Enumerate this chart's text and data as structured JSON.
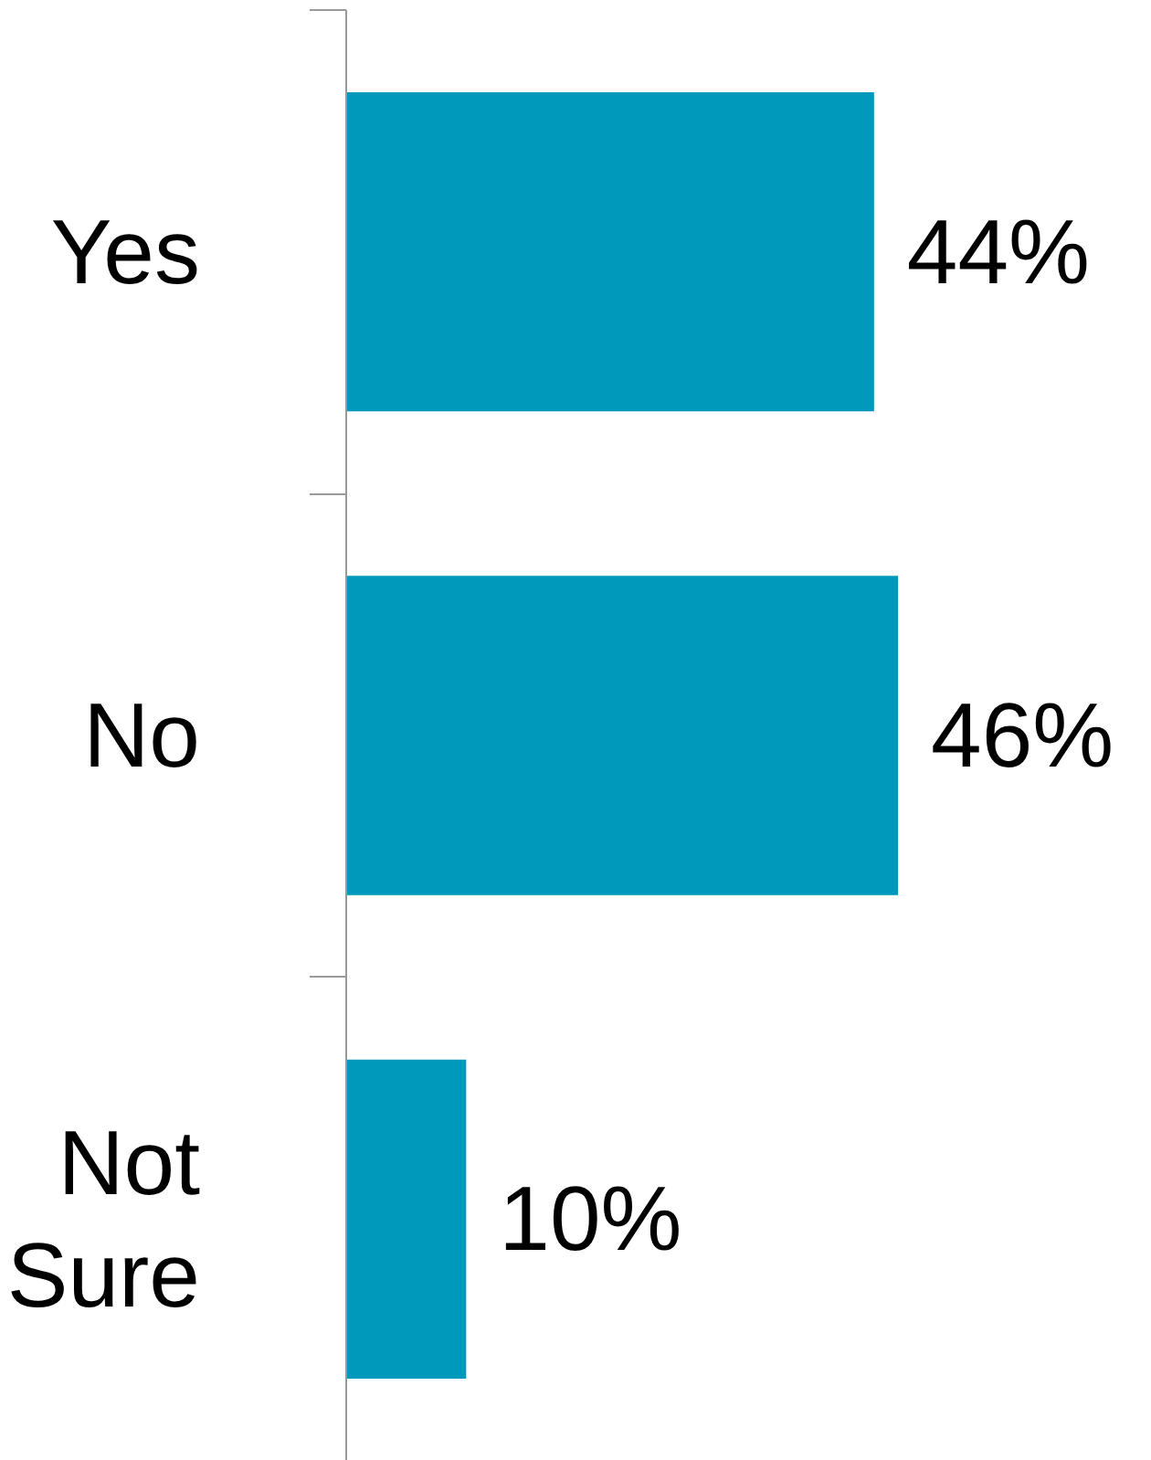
{
  "chart_data": {
    "type": "bar",
    "orientation": "horizontal",
    "categories": [
      "Yes",
      "No",
      "Not Sure"
    ],
    "values": [
      44,
      46,
      10
    ],
    "value_labels": [
      "44%",
      "46%",
      "10%"
    ],
    "color": "#0099bb",
    "grid": false,
    "tick_labels": "y"
  }
}
